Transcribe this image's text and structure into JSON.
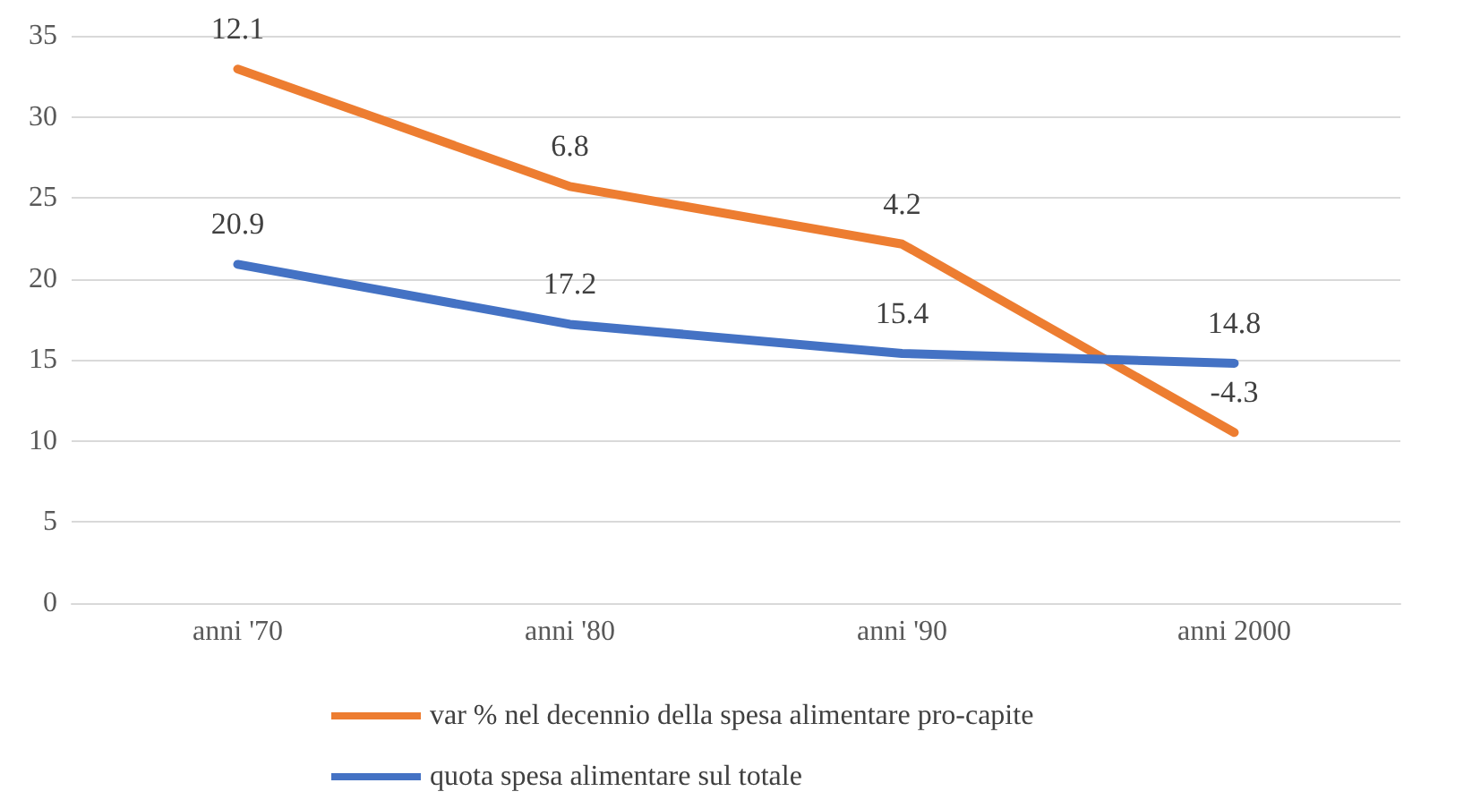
{
  "chart_data": {
    "type": "line",
    "categories": [
      "anni '70",
      "anni '80",
      "anni '90",
      "anni 2000"
    ],
    "series": [
      {
        "name": "var % nel decennio della spesa alimentare pro-capite",
        "color": "#ed7d31",
        "values": [
          12.1,
          6.8,
          4.2,
          -4.3
        ],
        "axis": "y2"
      },
      {
        "name": "quota spesa alimentare sul totale",
        "color": "#4472c4",
        "values": [
          20.9,
          17.2,
          15.4,
          14.8
        ]
      }
    ],
    "ylim": [
      0,
      35
    ],
    "yticks": [
      0,
      5,
      10,
      15,
      20,
      25,
      30,
      35
    ],
    "y2lim": [
      -12,
      13.6
    ],
    "tick_labels": "xy",
    "grid": "y",
    "legend": "bottom",
    "data_labels": true,
    "marker": "none",
    "line_style": "solid"
  }
}
